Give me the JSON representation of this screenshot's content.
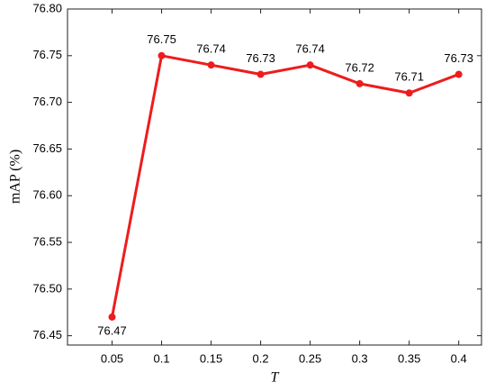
{
  "chart_data": {
    "type": "line",
    "x_label": "T",
    "y_label": "mAP (%)",
    "x": [
      0.05,
      0.1,
      0.15,
      0.2,
      0.25,
      0.3,
      0.35,
      0.4
    ],
    "series": [
      {
        "color": "#ee1c1c",
        "values": [
          76.47,
          76.75,
          76.74,
          76.73,
          76.74,
          76.72,
          76.71,
          76.73
        ]
      }
    ],
    "xlim": [
      0.005,
      0.423
    ],
    "xticks": [
      0.05,
      0.1,
      0.15,
      0.2,
      0.25,
      0.3,
      0.35,
      0.4
    ],
    "ylim": [
      76.44,
      76.8
    ],
    "yticks": [
      76.45,
      {
        "value": 76.5,
        "label": "76.50"
      },
      76.55,
      {
        "value": 76.6,
        "label": "76.60"
      },
      76.65,
      {
        "value": 76.7,
        "label": "76.70"
      },
      76.75,
      {
        "value": 76.8,
        "label": "76.80"
      }
    ],
    "data_labels": true
  }
}
